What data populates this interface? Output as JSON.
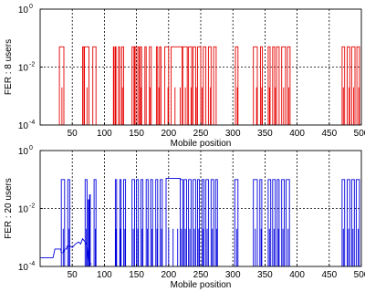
{
  "chart_data": [
    {
      "type": "line",
      "xlabel": "Mobile position",
      "ylabel": "FER : 8 users",
      "xlim": [
        0,
        500
      ],
      "ylim": [
        0.0001,
        1
      ],
      "yscale": "log",
      "grid": true,
      "x_ticks": [
        "50",
        "100",
        "150",
        "200",
        "250",
        "300",
        "350",
        "400",
        "450",
        "500"
      ],
      "y_ticks": [
        {
          "base": "10",
          "exp": "0"
        },
        {
          "base": "10",
          "exp": "-2"
        },
        {
          "base": "10",
          "exp": "-4"
        }
      ],
      "color": "#e60000",
      "series": [
        {
          "pulses": [
            [
              30,
              37,
              0.05
            ],
            [
              66,
              68,
              0.05
            ],
            [
              69,
              76,
              0.05
            ],
            [
              82,
              87,
              0.05
            ],
            [
              114,
              115,
              0.05
            ],
            [
              117,
              118,
              0.05
            ],
            [
              122,
              124,
              0.05
            ],
            [
              127,
              130,
              0.05
            ],
            [
              143,
              146,
              0.05
            ],
            [
              147,
              149,
              0.05
            ],
            [
              152,
              154,
              0.05
            ],
            [
              156,
              158,
              0.05
            ],
            [
              163,
              165,
              0.05
            ],
            [
              170,
              173,
              0.05
            ],
            [
              181,
              183,
              0.05
            ],
            [
              186,
              188,
              0.05
            ],
            [
              194,
              200,
              0.05
            ],
            [
              204,
              221,
              0.05
            ],
            [
              222,
              229,
              0.05
            ],
            [
              231,
              236,
              0.05
            ],
            [
              238,
              242,
              0.05
            ],
            [
              245,
              250,
              0.05
            ],
            [
              254,
              258,
              0.05
            ],
            [
              262,
              266,
              0.05
            ],
            [
              270,
              274,
              0.05
            ],
            [
              304,
              308,
              0.05
            ],
            [
              332,
              338,
              0.05
            ],
            [
              343,
              346,
              0.05
            ],
            [
              355,
              358,
              0.05
            ],
            [
              362,
              365,
              0.05
            ],
            [
              368,
              372,
              0.05
            ],
            [
              376,
              382,
              0.05
            ],
            [
              385,
              389,
              0.05
            ],
            [
              470,
              474,
              0.05
            ],
            [
              478,
              482,
              0.05
            ],
            [
              485,
              490,
              0.05
            ],
            [
              493,
              497,
              0.05
            ]
          ],
          "spikes": [
            [
              34,
              0.002
            ],
            [
              73,
              0.002
            ],
            [
              117,
              0.002
            ],
            [
              128,
              0.002
            ],
            [
              147,
              0.002
            ],
            [
              157,
              0.002
            ],
            [
              171,
              0.002
            ],
            [
              185,
              0.002
            ],
            [
              199,
              0.002
            ],
            [
              210,
              0.002
            ],
            [
              218,
              0.002
            ],
            [
              226,
              0.002
            ],
            [
              235,
              0.002
            ],
            [
              243,
              0.002
            ],
            [
              252,
              0.002
            ],
            [
              265,
              0.002
            ],
            [
              307,
              0.002
            ],
            [
              337,
              0.002
            ],
            [
              345,
              0.002
            ],
            [
              357,
              0.002
            ],
            [
              366,
              0.002
            ],
            [
              379,
              0.002
            ],
            [
              387,
              0.002
            ],
            [
              472,
              0.002
            ],
            [
              481,
              0.002
            ],
            [
              488,
              0.002
            ],
            [
              496,
              0.002
            ]
          ]
        }
      ]
    },
    {
      "type": "line",
      "xlabel": "Mobile position",
      "ylabel": "FER : 20 users",
      "xlim": [
        0,
        500
      ],
      "ylim": [
        0.0001,
        1
      ],
      "yscale": "log",
      "grid": true,
      "x_ticks": [
        "50",
        "100",
        "150",
        "200",
        "250",
        "300",
        "350",
        "400",
        "450",
        "500"
      ],
      "y_ticks": [
        {
          "base": "10",
          "exp": "0"
        },
        {
          "base": "10",
          "exp": "-2"
        },
        {
          "base": "10",
          "exp": "-4"
        }
      ],
      "color": "#0000dd",
      "series": [
        {
          "baseline": [
            [
              0,
              0.0002
            ],
            [
              20,
              0.0002
            ],
            [
              23,
              0.0004
            ],
            [
              32,
              0.0004
            ],
            [
              33,
              0.0003
            ],
            [
              36,
              0.0003
            ],
            [
              38,
              0.0004
            ],
            [
              41,
              0.0004
            ],
            [
              42,
              0.0005
            ],
            [
              47,
              0.0005
            ],
            [
              50,
              0.00045
            ],
            [
              55,
              0.0006
            ],
            [
              60,
              0.0007
            ],
            [
              63,
              0.0006
            ],
            [
              66,
              0.0009
            ],
            [
              70,
              0.0007
            ],
            [
              73,
              0.0005
            ],
            [
              75,
              0.00015
            ],
            [
              80,
              0.00012
            ]
          ],
          "pulses": [
            [
              33,
              38,
              0.1
            ],
            [
              43,
              46,
              0.1
            ],
            [
              70,
              73,
              0.1
            ],
            [
              75,
              76,
              0.02
            ],
            [
              77,
              78,
              0.03
            ],
            [
              84,
              87,
              0.1
            ],
            [
              117,
              119,
              0.1
            ],
            [
              124,
              126,
              0.1
            ],
            [
              130,
              133,
              0.1
            ],
            [
              143,
              147,
              0.1
            ],
            [
              150,
              153,
              0.1
            ],
            [
              157,
              160,
              0.1
            ],
            [
              165,
              168,
              0.1
            ],
            [
              172,
              175,
              0.1
            ],
            [
              180,
              183,
              0.1
            ],
            [
              187,
              190,
              0.1
            ],
            [
              196,
              218,
              0.11
            ],
            [
              218,
              222,
              0.1
            ],
            [
              224,
              228,
              0.1
            ],
            [
              231,
              235,
              0.1
            ],
            [
              238,
              242,
              0.1
            ],
            [
              245,
              248,
              0.1
            ],
            [
              252,
              255,
              0.1
            ],
            [
              258,
              262,
              0.1
            ],
            [
              266,
              270,
              0.1
            ],
            [
              273,
              276,
              0.1
            ],
            [
              303,
              308,
              0.1
            ],
            [
              332,
              338,
              0.1
            ],
            [
              342,
              345,
              0.1
            ],
            [
              355,
              359,
              0.1
            ],
            [
              362,
              366,
              0.1
            ],
            [
              369,
              372,
              0.1
            ],
            [
              376,
              380,
              0.1
            ],
            [
              383,
              388,
              0.1
            ],
            [
              470,
              474,
              0.1
            ],
            [
              478,
              482,
              0.1
            ],
            [
              485,
              489,
              0.1
            ],
            [
              492,
              497,
              0.1
            ]
          ],
          "spikes": [
            [
              36,
              0.002
            ],
            [
              45,
              0.002
            ],
            [
              72,
              0.002
            ],
            [
              86,
              0.002
            ],
            [
              118,
              0.002
            ],
            [
              125,
              0.002
            ],
            [
              132,
              0.002
            ],
            [
              145,
              0.002
            ],
            [
              152,
              0.002
            ],
            [
              159,
              0.002
            ],
            [
              167,
              0.002
            ],
            [
              174,
              0.002
            ],
            [
              182,
              0.002
            ],
            [
              189,
              0.002
            ],
            [
              200,
              0.002
            ],
            [
              207,
              0.002
            ],
            [
              214,
              0.002
            ],
            [
              220,
              0.002
            ],
            [
              226,
              0.002
            ],
            [
              233,
              0.002
            ],
            [
              240,
              0.002
            ],
            [
              247,
              0.002
            ],
            [
              254,
              0.002
            ],
            [
              260,
              0.002
            ],
            [
              268,
              0.002
            ],
            [
              275,
              0.002
            ],
            [
              306,
              0.002
            ],
            [
              335,
              0.002
            ],
            [
              344,
              0.002
            ],
            [
              357,
              0.002
            ],
            [
              364,
              0.002
            ],
            [
              371,
              0.002
            ],
            [
              378,
              0.002
            ],
            [
              386,
              0.002
            ],
            [
              472,
              0.002
            ],
            [
              480,
              0.002
            ],
            [
              487,
              0.002
            ],
            [
              495,
              0.002
            ]
          ]
        }
      ]
    }
  ]
}
